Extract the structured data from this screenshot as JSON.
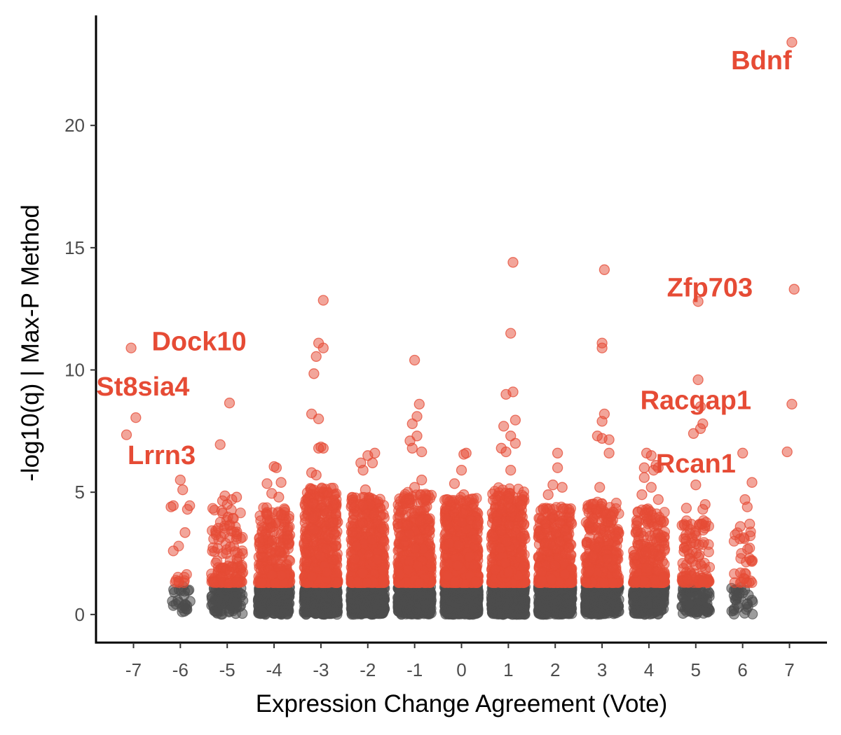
{
  "chart_data": {
    "type": "scatter",
    "title": "",
    "xlabel": "Expression Change Agreement (Vote)",
    "ylabel": "-log10(q) | Max-P Method",
    "xlim": [
      -7.8,
      7.8
    ],
    "ylim": [
      -1.15,
      24.5
    ],
    "x_ticks": [
      -7,
      -6,
      -5,
      -4,
      -3,
      -2,
      -1,
      0,
      1,
      2,
      3,
      4,
      5,
      6,
      7
    ],
    "x_tick_labels": [
      "-7",
      "-6",
      "-5",
      "-4",
      "-3",
      "-2",
      "-1",
      "0",
      "1",
      "2",
      "3",
      "4",
      "5",
      "6",
      "7"
    ],
    "y_ticks": [
      0,
      5,
      10,
      15,
      20
    ],
    "y_tick_labels": [
      "0",
      "5",
      "10",
      "15",
      "20"
    ],
    "grid": false,
    "legend": "none",
    "colors": {
      "significant": "#e64b35",
      "nonsignificant": "#4d4d4d",
      "label": "#e64b35"
    },
    "significance_threshold": 1.3,
    "highlighted_points": [
      {
        "x": 7.05,
        "y": 23.4
      },
      {
        "x": 7.1,
        "y": 13.3
      },
      {
        "x": 7.05,
        "y": 8.6
      },
      {
        "x": 6.95,
        "y": 6.65
      },
      {
        "x": 5.05,
        "y": 12.8
      },
      {
        "x": 5.05,
        "y": 9.6
      },
      {
        "x": 5.1,
        "y": 8.5
      },
      {
        "x": 5.15,
        "y": 7.8
      },
      {
        "x": 5.1,
        "y": 7.6
      },
      {
        "x": 4.95,
        "y": 7.4
      },
      {
        "x": 5.0,
        "y": 5.3
      },
      {
        "x": 5.2,
        "y": 4.5
      },
      {
        "x": 4.8,
        "y": 4.35
      },
      {
        "x": 5.15,
        "y": 4.3
      },
      {
        "x": 6.0,
        "y": 6.6
      },
      {
        "x": 6.2,
        "y": 5.4
      },
      {
        "x": 6.05,
        "y": 4.7
      },
      {
        "x": 6.1,
        "y": 4.4
      },
      {
        "x": 5.95,
        "y": 3.6
      },
      {
        "x": 6.15,
        "y": 3.7
      },
      {
        "x": 3.05,
        "y": 14.1
      },
      {
        "x": 3.0,
        "y": 11.1
      },
      {
        "x": 3.0,
        "y": 10.9
      },
      {
        "x": 3.05,
        "y": 8.2
      },
      {
        "x": 3.0,
        "y": 7.9
      },
      {
        "x": 2.9,
        "y": 7.3
      },
      {
        "x": 3.15,
        "y": 7.15
      },
      {
        "x": 3.0,
        "y": 7.2
      },
      {
        "x": 3.15,
        "y": 6.6
      },
      {
        "x": 2.95,
        "y": 5.2
      },
      {
        "x": 1.1,
        "y": 14.4
      },
      {
        "x": 1.05,
        "y": 11.5
      },
      {
        "x": 0.95,
        "y": 9.0
      },
      {
        "x": 1.1,
        "y": 9.1
      },
      {
        "x": 1.15,
        "y": 7.95
      },
      {
        "x": 0.9,
        "y": 7.7
      },
      {
        "x": 1.05,
        "y": 7.3
      },
      {
        "x": 1.15,
        "y": 7.0
      },
      {
        "x": 0.85,
        "y": 6.8
      },
      {
        "x": 0.95,
        "y": 6.65
      },
      {
        "x": 1.05,
        "y": 5.9
      },
      {
        "x": -2.95,
        "y": 12.85
      },
      {
        "x": -3.05,
        "y": 11.1
      },
      {
        "x": -2.95,
        "y": 10.9
      },
      {
        "x": -3.1,
        "y": 10.55
      },
      {
        "x": -3.15,
        "y": 9.85
      },
      {
        "x": -3.2,
        "y": 8.2
      },
      {
        "x": -3.05,
        "y": 8.0
      },
      {
        "x": -3.0,
        "y": 6.85
      },
      {
        "x": -2.95,
        "y": 6.8
      },
      {
        "x": -3.05,
        "y": 6.8
      },
      {
        "x": -3.2,
        "y": 5.8
      },
      {
        "x": -3.1,
        "y": 5.7
      },
      {
        "x": -1.0,
        "y": 10.4
      },
      {
        "x": -0.9,
        "y": 8.6
      },
      {
        "x": -0.95,
        "y": 8.1
      },
      {
        "x": -1.05,
        "y": 7.8
      },
      {
        "x": -0.95,
        "y": 7.3
      },
      {
        "x": -1.1,
        "y": 7.1
      },
      {
        "x": -1.05,
        "y": 6.8
      },
      {
        "x": -0.85,
        "y": 6.65
      },
      {
        "x": -0.85,
        "y": 5.5
      },
      {
        "x": -1.0,
        "y": 5.2
      },
      {
        "x": -2.0,
        "y": 6.5
      },
      {
        "x": -1.85,
        "y": 6.6
      },
      {
        "x": -2.15,
        "y": 6.2
      },
      {
        "x": -1.9,
        "y": 6.2
      },
      {
        "x": -2.1,
        "y": 5.9
      },
      {
        "x": -2.05,
        "y": 5.1
      },
      {
        "x": 0.1,
        "y": 6.6
      },
      {
        "x": 0.05,
        "y": 6.55
      },
      {
        "x": 0.0,
        "y": 5.9
      },
      {
        "x": -0.15,
        "y": 5.35
      },
      {
        "x": 0.05,
        "y": 4.9
      },
      {
        "x": 2.05,
        "y": 6.6
      },
      {
        "x": 2.05,
        "y": 6.0
      },
      {
        "x": 1.95,
        "y": 5.3
      },
      {
        "x": 2.15,
        "y": 5.2
      },
      {
        "x": 1.85,
        "y": 4.9
      },
      {
        "x": 3.95,
        "y": 6.6
      },
      {
        "x": 4.05,
        "y": 6.5
      },
      {
        "x": 4.15,
        "y": 6.1
      },
      {
        "x": 3.9,
        "y": 6.0
      },
      {
        "x": 4.2,
        "y": 6.0
      },
      {
        "x": 4.1,
        "y": 5.9
      },
      {
        "x": 3.9,
        "y": 5.6
      },
      {
        "x": 4.05,
        "y": 5.2
      },
      {
        "x": 3.85,
        "y": 4.9
      },
      {
        "x": 4.2,
        "y": 4.7
      },
      {
        "x": -3.95,
        "y": 6.0
      },
      {
        "x": -4.0,
        "y": 6.05
      },
      {
        "x": -4.15,
        "y": 5.35
      },
      {
        "x": -3.85,
        "y": 5.4
      },
      {
        "x": -4.05,
        "y": 4.95
      },
      {
        "x": -3.9,
        "y": 4.8
      },
      {
        "x": -4.95,
        "y": 8.65
      },
      {
        "x": -5.15,
        "y": 6.95
      },
      {
        "x": -5.05,
        "y": 4.85
      },
      {
        "x": -4.9,
        "y": 4.7
      },
      {
        "x": -4.8,
        "y": 4.8
      },
      {
        "x": -5.1,
        "y": 4.65
      },
      {
        "x": -5.0,
        "y": 4.5
      },
      {
        "x": -7.05,
        "y": 10.9
      },
      {
        "x": -6.95,
        "y": 8.05
      },
      {
        "x": -7.15,
        "y": 7.35
      },
      {
        "x": -6.0,
        "y": 5.5
      },
      {
        "x": -5.95,
        "y": 5.1
      },
      {
        "x": -6.15,
        "y": 4.45
      },
      {
        "x": -6.2,
        "y": 4.4
      },
      {
        "x": -5.8,
        "y": 4.45
      },
      {
        "x": -5.85,
        "y": 4.3
      },
      {
        "x": -5.9,
        "y": 3.35
      },
      {
        "x": -6.15,
        "y": 2.6
      }
    ],
    "column_spreads": [
      {
        "x": -6,
        "width": 0.22,
        "max_sig": 3.0,
        "n_sig": 10,
        "n_ns": 25
      },
      {
        "x": -5,
        "width": 0.34,
        "max_sig": 4.4,
        "n_sig": 130,
        "n_ns": 110
      },
      {
        "x": -4,
        "width": 0.34,
        "max_sig": 4.4,
        "n_sig": 300,
        "n_ns": 260
      },
      {
        "x": -3,
        "width": 0.36,
        "max_sig": 5.2,
        "n_sig": 500,
        "n_ns": 420
      },
      {
        "x": -2,
        "width": 0.36,
        "max_sig": 4.8,
        "n_sig": 560,
        "n_ns": 480
      },
      {
        "x": -1,
        "width": 0.36,
        "max_sig": 5.0,
        "n_sig": 560,
        "n_ns": 480
      },
      {
        "x": 0,
        "width": 0.36,
        "max_sig": 4.8,
        "n_sig": 620,
        "n_ns": 520
      },
      {
        "x": 1,
        "width": 0.36,
        "max_sig": 5.2,
        "n_sig": 560,
        "n_ns": 480
      },
      {
        "x": 2,
        "width": 0.36,
        "max_sig": 4.4,
        "n_sig": 420,
        "n_ns": 380
      },
      {
        "x": 3,
        "width": 0.36,
        "max_sig": 4.6,
        "n_sig": 380,
        "n_ns": 340
      },
      {
        "x": 4,
        "width": 0.34,
        "max_sig": 4.4,
        "n_sig": 280,
        "n_ns": 240
      },
      {
        "x": 5,
        "width": 0.3,
        "max_sig": 4.0,
        "n_sig": 110,
        "n_ns": 100
      },
      {
        "x": 6,
        "width": 0.24,
        "max_sig": 3.4,
        "n_sig": 30,
        "n_ns": 30
      }
    ],
    "annotations": [
      {
        "text": "Bdnf",
        "x": 6.4,
        "y": 22.3
      },
      {
        "text": "Zfp703",
        "x": 5.3,
        "y": 13.0
      },
      {
        "text": "Dock10",
        "x": -5.6,
        "y": 10.8
      },
      {
        "text": "St8sia4",
        "x": -6.8,
        "y": 8.95
      },
      {
        "text": "Racgap1",
        "x": 5.0,
        "y": 8.4
      },
      {
        "text": "Lrrn3",
        "x": -6.4,
        "y": 6.15
      },
      {
        "text": "Rcan1",
        "x": 5.0,
        "y": 5.8
      }
    ]
  }
}
